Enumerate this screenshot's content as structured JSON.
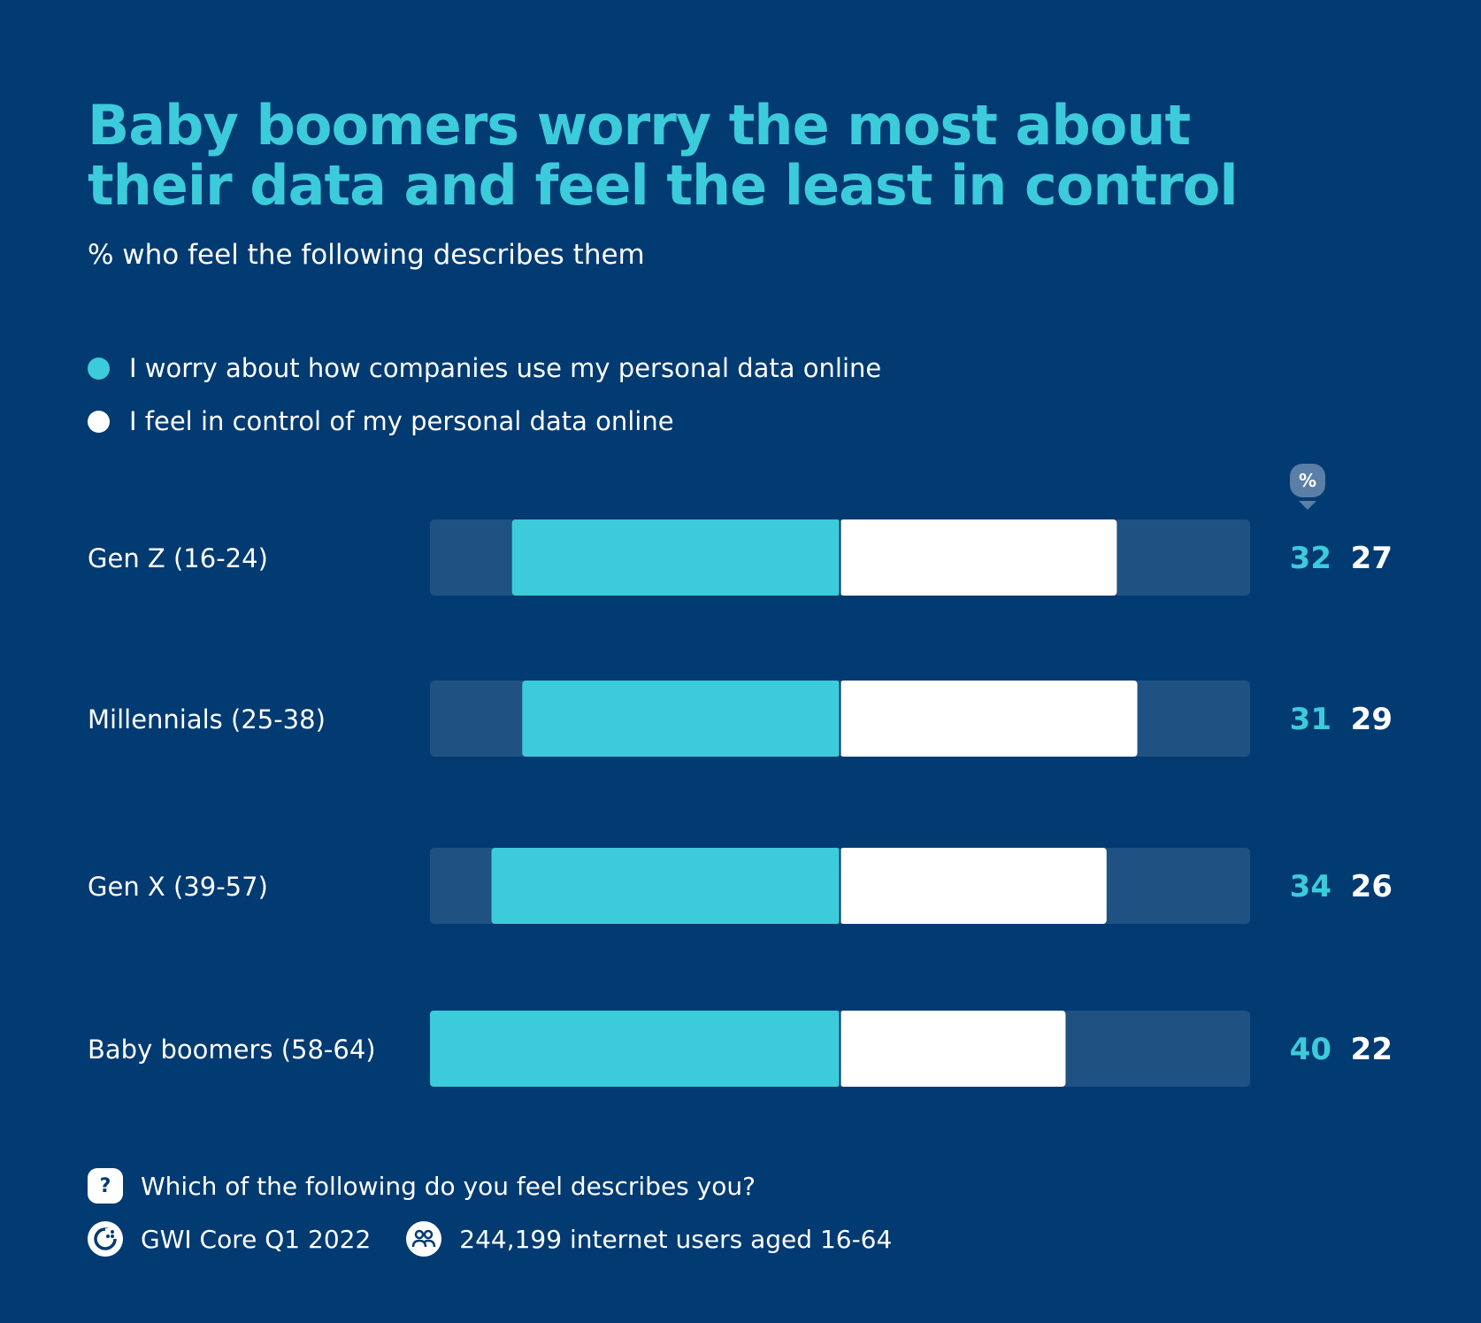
{
  "title": "Baby boomers worry the most about their data and feel the least in control",
  "subtitle": "% who feel the following describes them",
  "unit_badge": "%",
  "colors": {
    "background": "#023a72",
    "track": "#1f5282",
    "worry": "#3ccbdb",
    "control": "#ffffff"
  },
  "chart_data": {
    "type": "bar",
    "subtype": "diverging-stacked",
    "categories": [
      "Gen Z (16-24)",
      "Millennials (25-38)",
      "Gen X (39-57)",
      "Baby boomers (58-64)"
    ],
    "series": [
      {
        "name": "I worry about how companies use my personal data online",
        "values": [
          32,
          31,
          34,
          40
        ],
        "color": "#3ccbdb"
      },
      {
        "name": "I feel in control of my personal data online",
        "values": [
          27,
          29,
          26,
          22
        ],
        "color": "#ffffff"
      }
    ],
    "xlim": [
      -40,
      40
    ],
    "legend_position": "top-left"
  },
  "footer": {
    "question": "Which of the following do you feel describes you?",
    "source": "GWI Core Q1 2022",
    "sample": "244,199 internet users aged 16-64",
    "question_icon": "question-icon",
    "source_icon": "gwi-logo-icon",
    "sample_icon": "users-icon"
  }
}
